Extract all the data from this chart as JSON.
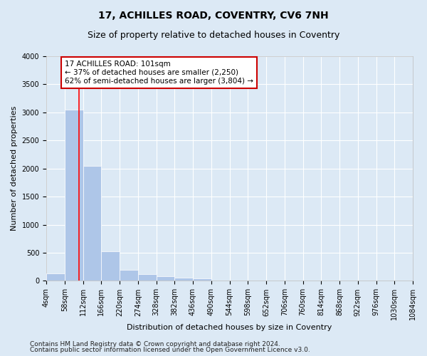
{
  "title": "17, ACHILLES ROAD, COVENTRY, CV6 7NH",
  "subtitle": "Size of property relative to detached houses in Coventry",
  "xlabel": "Distribution of detached houses by size in Coventry",
  "ylabel": "Number of detached properties",
  "bin_edges": [
    4,
    58,
    112,
    166,
    220,
    274,
    328,
    382,
    436,
    490,
    544,
    598,
    652,
    706,
    760,
    814,
    868,
    922,
    976,
    1030,
    1084
  ],
  "bar_heights": [
    130,
    3050,
    2050,
    520,
    195,
    120,
    80,
    55,
    45,
    0,
    0,
    0,
    0,
    0,
    0,
    0,
    0,
    0,
    0,
    0
  ],
  "bar_color": "#aec6e8",
  "background_color": "#dce9f5",
  "grid_color": "#ffffff",
  "red_line_x": 101,
  "annotation_text_line1": "17 ACHILLES ROAD: 101sqm",
  "annotation_text_line2": "← 37% of detached houses are smaller (2,250)",
  "annotation_text_line3": "62% of semi-detached houses are larger (3,804) →",
  "annotation_box_color": "#cc0000",
  "ylim": [
    0,
    4000
  ],
  "yticks": [
    0,
    500,
    1000,
    1500,
    2000,
    2500,
    3000,
    3500,
    4000
  ],
  "footer_line1": "Contains HM Land Registry data © Crown copyright and database right 2024.",
  "footer_line2": "Contains public sector information licensed under the Open Government Licence v3.0.",
  "title_fontsize": 10,
  "subtitle_fontsize": 9,
  "axis_label_fontsize": 8,
  "tick_fontsize": 7,
  "annotation_fontsize": 7.5,
  "footer_fontsize": 6.5
}
